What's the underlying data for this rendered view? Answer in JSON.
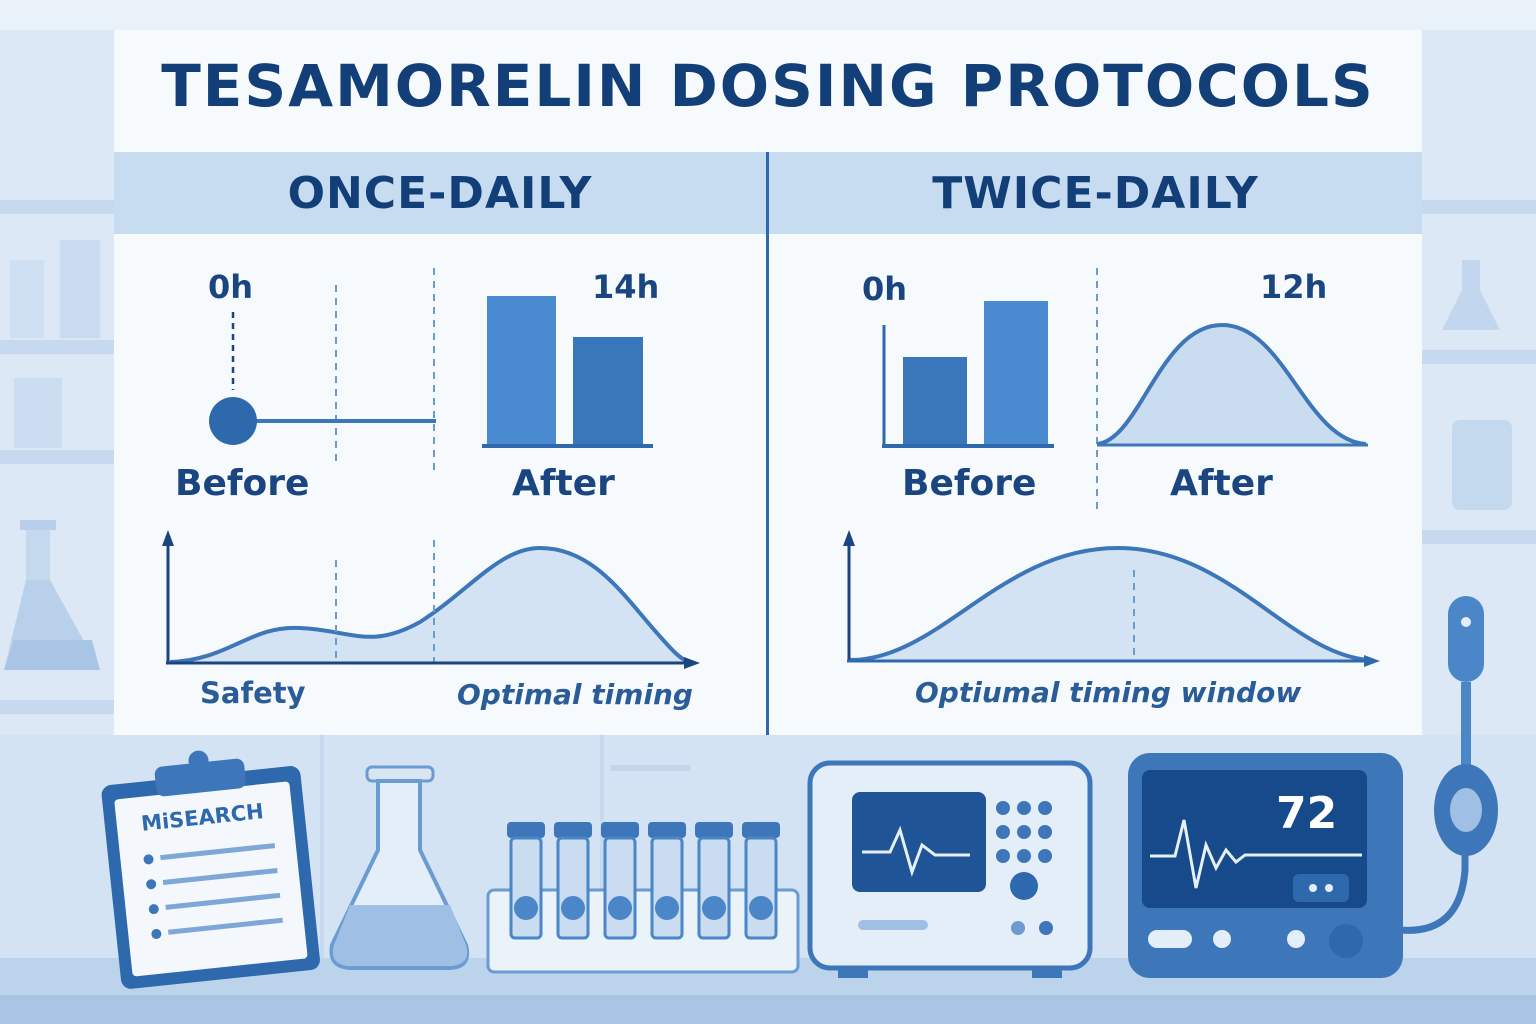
{
  "title": "TESAMORELIN DOSING PROTOCOLS",
  "once_daily": {
    "header": "ONCE-DAILY",
    "start_time": "0h",
    "end_time": "14h",
    "before_label": "Before",
    "after_label": "After",
    "left_caption": "Safety",
    "right_caption": "Optimal timing"
  },
  "twice_daily": {
    "header": "TWICE-DAILY",
    "start_time": "0h",
    "end_time": "12h",
    "before_label": "Before",
    "after_label": "After",
    "caption": "Optiumal timing window"
  },
  "clipboard_text": "MiSEARCH",
  "monitor_value": "72",
  "colors": {
    "navy": "#123f78",
    "accent": "#2f69ad",
    "bar": "#4a86c8",
    "fill": "#c9dcf0",
    "header_band": "#c7dcf0",
    "panel": "#f7fafd"
  }
}
